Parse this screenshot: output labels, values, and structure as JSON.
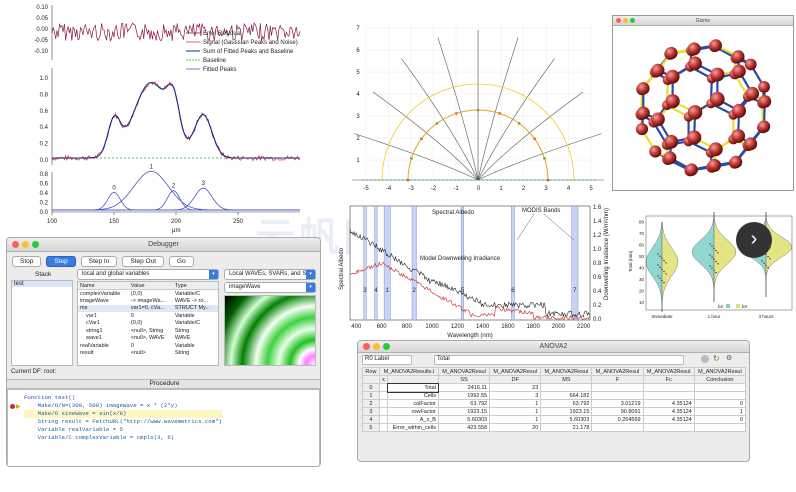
{
  "peak_chart": {
    "legend": [
      "Error Residual",
      "Signal (Gaussian Peaks and Noise)",
      "Sum of Fitted Peaks and Baseline",
      "Baseline",
      "Fitted Peaks"
    ],
    "residual_ticks": [
      "0.10",
      "0.05",
      "0.00",
      "-0.05",
      "-0.10"
    ],
    "main_ticks": [
      "1.0",
      "0.8",
      "0.6",
      "0.4",
      "0.2",
      "0.0"
    ],
    "sub_ticks": [
      "0.8",
      "0.6",
      "0.4",
      "0.2",
      "0.0"
    ],
    "x_ticks": [
      "100",
      "150",
      "200",
      "250"
    ],
    "xlabel": "μm",
    "peak_labels": [
      "0",
      "1",
      "2",
      "3"
    ],
    "colors": {
      "residual": "#8b1a3a",
      "signal": "#e04040",
      "fit": "#1a2a8a",
      "baseline": "#22aa44",
      "peaks": "#4a55cc"
    }
  },
  "vector_chart": {
    "y_ticks": [
      "7",
      "6",
      "5",
      "4",
      "3",
      "2",
      "1"
    ],
    "x_ticks": [
      "-5",
      "-4",
      "-3",
      "-2",
      "-1",
      "0",
      "1",
      "2",
      "3",
      "4",
      "5"
    ]
  },
  "bucky": {
    "title": "Gizmo",
    "colors": {
      "atom": "#b8302a",
      "bond": "#2a4aa8",
      "double_bond": "#e8e030"
    }
  },
  "spectrum_chart": {
    "x_ticks": [
      "400",
      "600",
      "800",
      "1000",
      "1200",
      "1400",
      "1600",
      "1800",
      "2000",
      "2200"
    ],
    "xlabel": "Wavelength (nm)",
    "ylabel_left": "Spectral Albedo",
    "ylabel_right": "Downwelling Irradiance (W/m²/nm)",
    "y_right_ticks": [
      "1.6",
      "1.4",
      "1.2",
      "1.0",
      "0.8",
      "0.6",
      "0.4",
      "0.2",
      "0.0"
    ],
    "annotations": {
      "spectral": "Spectral Albedo",
      "model": "Model Downwelling Irradiance",
      "modis": "MODIS Bands"
    },
    "band_labels": [
      "3",
      "4",
      "1",
      "2",
      "5",
      "6",
      "7"
    ]
  },
  "violin_chart": {
    "ylabel": "Total (mm)",
    "y_ticks": [
      "80",
      "70",
      "60",
      "50",
      "40",
      "30",
      "20",
      "10"
    ],
    "x_labels": [
      "Immediate",
      "1 hour",
      "3 hours"
    ],
    "legend": [
      "b2",
      "b3"
    ]
  },
  "debugger": {
    "title": "Debugger",
    "buttons": [
      "Stop",
      "Step",
      "Step In",
      "Step Out",
      "Go"
    ],
    "stack_label": "Stack",
    "stack_items": [
      "test"
    ],
    "scope_select": "local and global variables",
    "wave_select": "Local WAVEs, SVARs, and Str",
    "wave_name": "imageWave",
    "var_headers": [
      "Name",
      "Value",
      "Type"
    ],
    "vars": [
      [
        "complexVariable",
        "(0,0)",
        "Variable/C"
      ],
      [
        "imageWave",
        "-> imageWa...",
        "WAVE -> ro..."
      ],
      [
        "ms",
        "var1=0, cVa...",
        "STRUCT My..."
      ],
      [
        "var1",
        "0",
        "Variable"
      ],
      [
        "cVar1",
        "(0,0)",
        "Variable/C"
      ],
      [
        "string1",
        "<null>, String",
        "String"
      ],
      [
        "wave1",
        "<null>, WAVE",
        "WAVE"
      ],
      [
        "realVariable",
        "0",
        "Variable"
      ],
      [
        "result",
        "<null>",
        "String"
      ]
    ],
    "current_df_label": "Current DF:",
    "current_df": "root:",
    "procedure_label": "Procedure",
    "code": [
      "Function test()",
      "    Make/O/N=(300, 500) imageWave = x * (2*y)",
      "    Make/O sineWave = sin(x/8)",
      "    String result = FetchURL(\"http://www.wavemetrics.com\")",
      "    Variable realVariable = 5",
      "    Variable/C complexVariable = cmplx(3, 6)"
    ]
  },
  "anova": {
    "title": "ANOVA2",
    "row_label": "R0 Label",
    "cell_value": "Total",
    "col_headers": [
      "Row",
      "M_ANOVA2Results.l",
      "M_ANOVA2Resul",
      "M_ANOVA2Resul",
      "M_ANOVA2Resul",
      "M_ANOVA2Resul",
      "M_ANOVA2Resul",
      "M_ANOVA2Resul"
    ],
    "sub_headers": [
      "",
      "x",
      "",
      "SS",
      "DF",
      "MS",
      "F",
      "Fc",
      "Conclusion"
    ],
    "rows": [
      [
        "0",
        "Total",
        "2416.11",
        "23",
        "",
        "",
        "",
        ""
      ],
      [
        "1",
        "Cells",
        "1992.55",
        "3",
        "664.182",
        "",
        "",
        ""
      ],
      [
        "2",
        "colFactor",
        "63.792",
        "1",
        "63.792",
        "3.01219",
        "4.35124",
        "0"
      ],
      [
        "3",
        "rowFactor",
        "1923.15",
        "1",
        "1923.15",
        "90.8091",
        "4.35124",
        "1"
      ],
      [
        "4",
        "A_x_B",
        "5.60303",
        "1",
        "5.60303",
        "0.264569",
        "4.35124",
        "0"
      ],
      [
        "5",
        "Error_within_cells",
        "423.558",
        "20",
        "21.178",
        "",
        "",
        ""
      ]
    ]
  },
  "watermark": "云帆网"
}
